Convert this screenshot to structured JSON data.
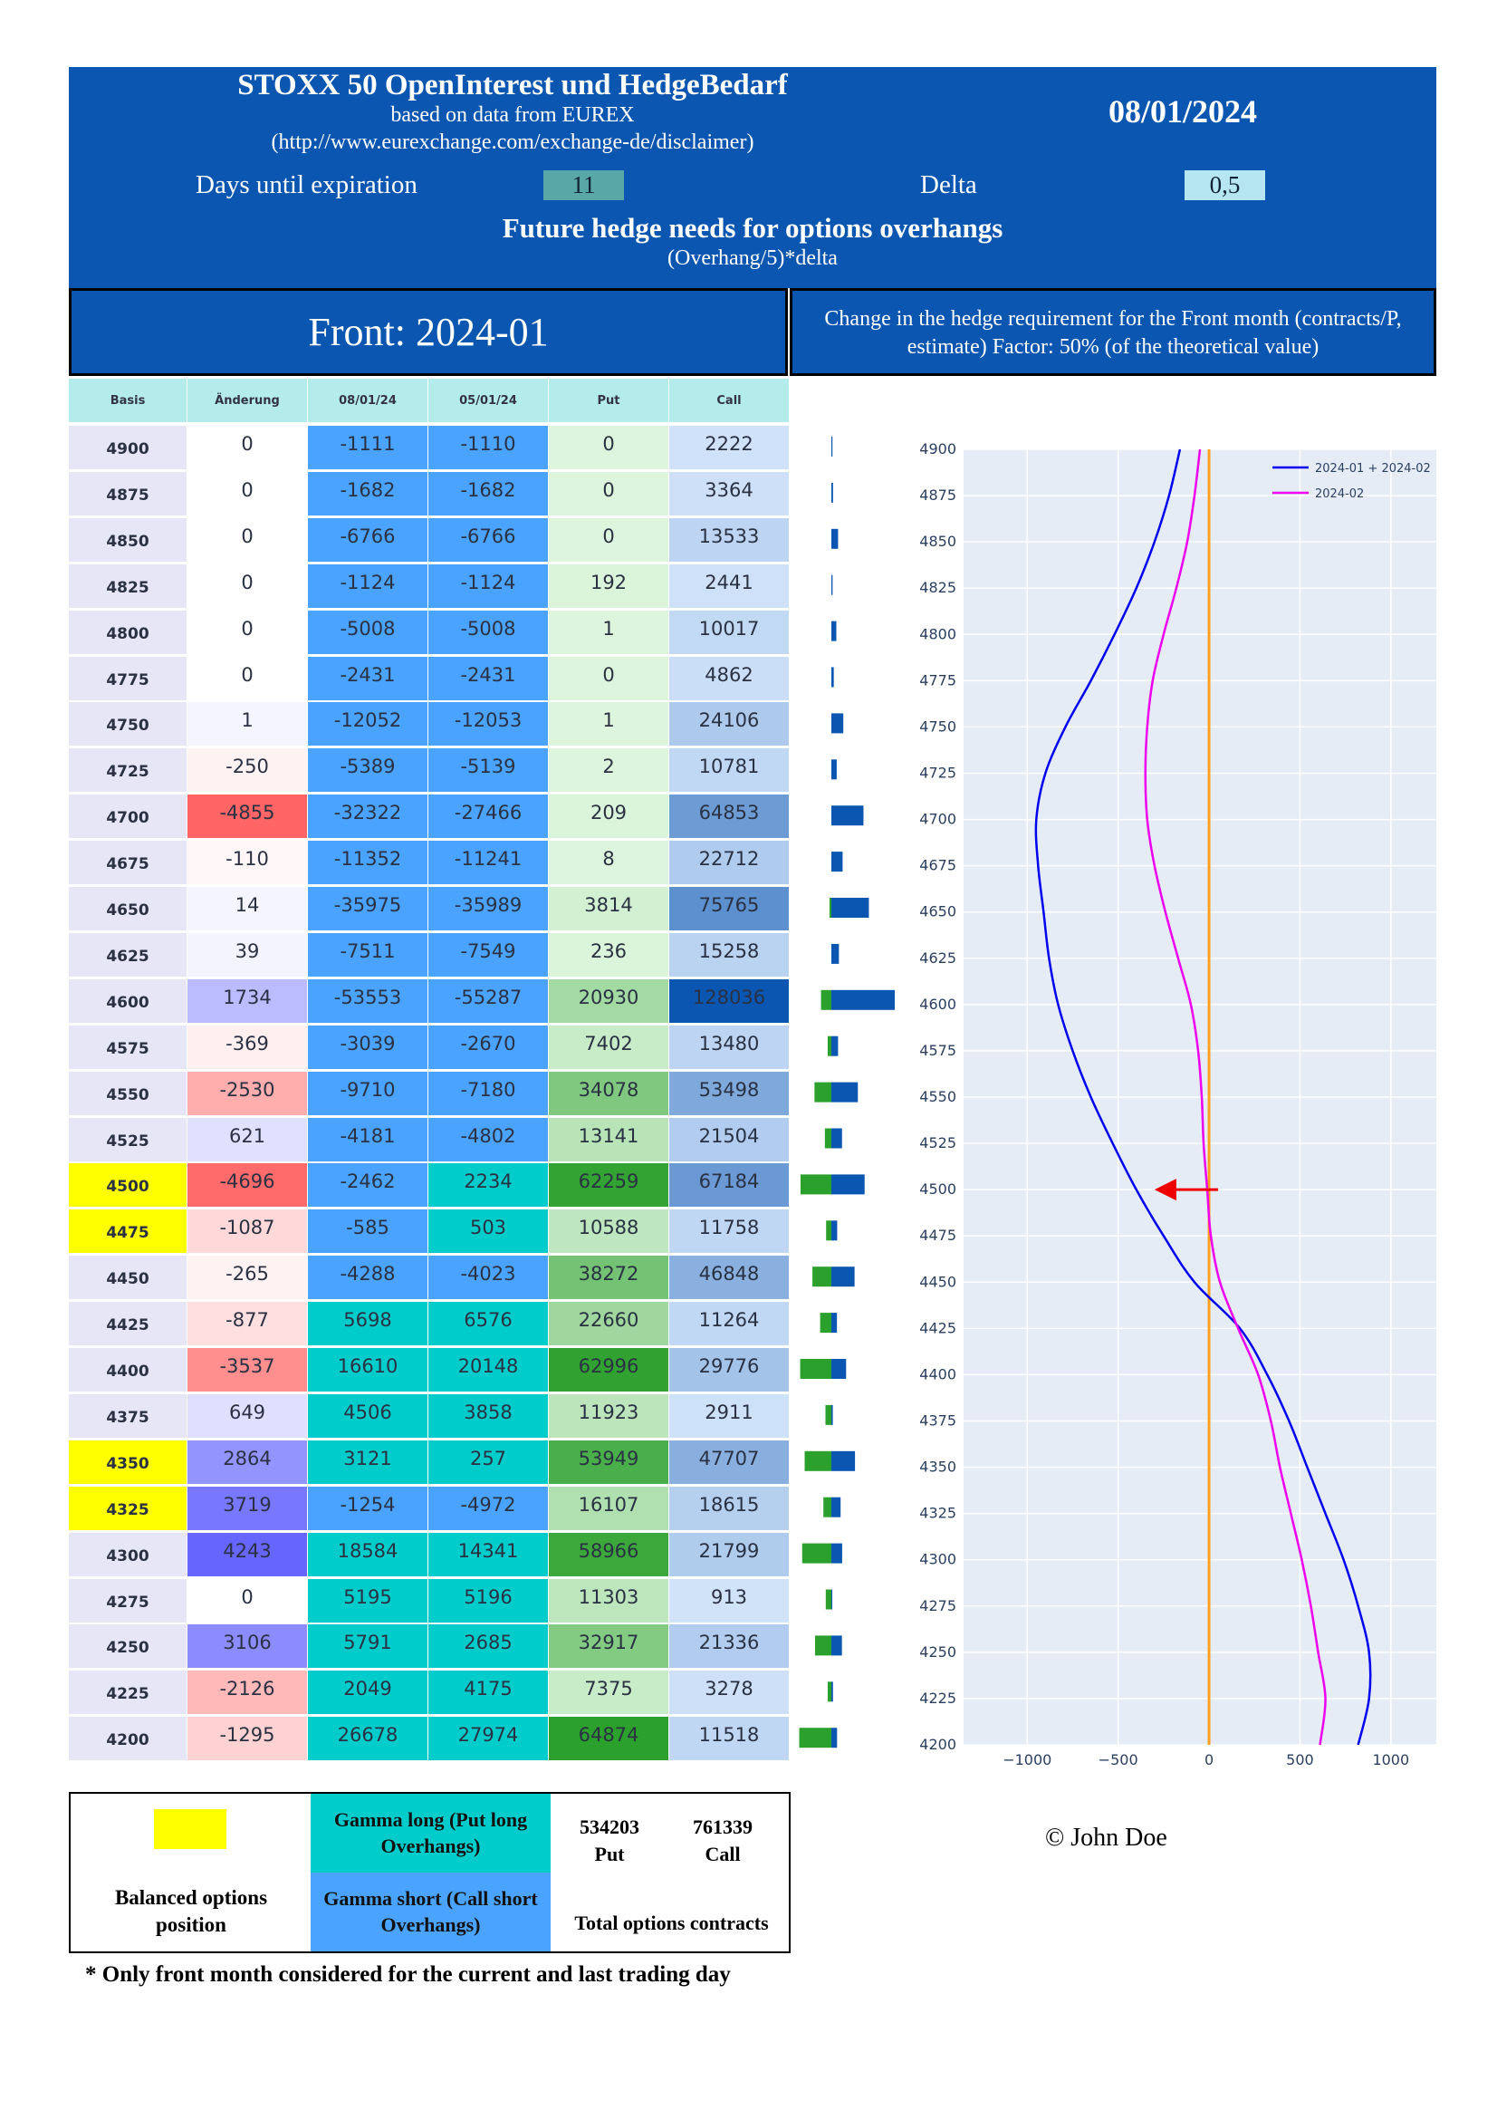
{
  "header": {
    "title": "STOXX 50 OpenInterest und HedgeBedarf",
    "subtitle1": "based on data from EUREX",
    "subtitle2": "(http://www.eurexchange.com/exchange-de/disclaimer)",
    "date": "08/01/2024",
    "days_label": "Days until expiration",
    "days_value": "11",
    "delta_label": "Delta",
    "delta_value": "0,5",
    "future_title": "Future hedge needs for options overhangs",
    "formula": "(Overhang/5)*delta"
  },
  "front_label": "Front: 2024-01",
  "change_label": "Change in the hedge requirement for the Front month (contracts/P, estimate) Factor: 50% (of the theoretical value)",
  "table": {
    "columns": [
      "Basis",
      "Änderung",
      "08/01/24",
      "05/01/24",
      "Put",
      "Call"
    ],
    "rows": [
      {
        "basis": 4900,
        "change": 0,
        "cur": -1111,
        "prev": -1110,
        "put": 0,
        "call": 2222
      },
      {
        "basis": 4875,
        "change": 0,
        "cur": -1682,
        "prev": -1682,
        "put": 0,
        "call": 3364
      },
      {
        "basis": 4850,
        "change": 0,
        "cur": -6766,
        "prev": -6766,
        "put": 0,
        "call": 13533
      },
      {
        "basis": 4825,
        "change": 0,
        "cur": -1124,
        "prev": -1124,
        "put": 192,
        "call": 2441
      },
      {
        "basis": 4800,
        "change": 0,
        "cur": -5008,
        "prev": -5008,
        "put": 1,
        "call": 10017
      },
      {
        "basis": 4775,
        "change": 0,
        "cur": -2431,
        "prev": -2431,
        "put": 0,
        "call": 4862
      },
      {
        "basis": 4750,
        "change": 1,
        "cur": -12052,
        "prev": -12053,
        "put": 1,
        "call": 24106
      },
      {
        "basis": 4725,
        "change": -250,
        "cur": -5389,
        "prev": -5139,
        "put": 2,
        "call": 10781
      },
      {
        "basis": 4700,
        "change": -4855,
        "cur": -32322,
        "prev": -27466,
        "put": 209,
        "call": 64853
      },
      {
        "basis": 4675,
        "change": -110,
        "cur": -11352,
        "prev": -11241,
        "put": 8,
        "call": 22712
      },
      {
        "basis": 4650,
        "change": 14,
        "cur": -35975,
        "prev": -35989,
        "put": 3814,
        "call": 75765
      },
      {
        "basis": 4625,
        "change": 39,
        "cur": -7511,
        "prev": -7549,
        "put": 236,
        "call": 15258
      },
      {
        "basis": 4600,
        "change": 1734,
        "cur": -53553,
        "prev": -55287,
        "put": 20930,
        "call": 128036
      },
      {
        "basis": 4575,
        "change": -369,
        "cur": -3039,
        "prev": -2670,
        "put": 7402,
        "call": 13480
      },
      {
        "basis": 4550,
        "change": -2530,
        "cur": -9710,
        "prev": -7180,
        "put": 34078,
        "call": 53498
      },
      {
        "basis": 4525,
        "change": 621,
        "cur": -4181,
        "prev": -4802,
        "put": 13141,
        "call": 21504
      },
      {
        "basis": 4500,
        "change": -4696,
        "cur": -2462,
        "prev": 2234,
        "put": 62259,
        "call": 67184,
        "highlight": true
      },
      {
        "basis": 4475,
        "change": -1087,
        "cur": -585,
        "prev": 503,
        "put": 10588,
        "call": 11758,
        "highlight": true
      },
      {
        "basis": 4450,
        "change": -265,
        "cur": -4288,
        "prev": -4023,
        "put": 38272,
        "call": 46848
      },
      {
        "basis": 4425,
        "change": -877,
        "cur": 5698,
        "prev": 6576,
        "put": 22660,
        "call": 11264
      },
      {
        "basis": 4400,
        "change": -3537,
        "cur": 16610,
        "prev": 20148,
        "put": 62996,
        "call": 29776
      },
      {
        "basis": 4375,
        "change": 649,
        "cur": 4506,
        "prev": 3858,
        "put": 11923,
        "call": 2911
      },
      {
        "basis": 4350,
        "change": 2864,
        "cur": 3121,
        "prev": 257,
        "put": 53949,
        "call": 47707,
        "highlight": true
      },
      {
        "basis": 4325,
        "change": 3719,
        "cur": -1254,
        "prev": -4972,
        "put": 16107,
        "call": 18615,
        "highlight": true
      },
      {
        "basis": 4300,
        "change": 4243,
        "cur": 18584,
        "prev": 14341,
        "put": 58966,
        "call": 21799
      },
      {
        "basis": 4275,
        "change": 0,
        "cur": 5195,
        "prev": 5196,
        "put": 11303,
        "call": 913
      },
      {
        "basis": 4250,
        "change": 3106,
        "cur": 5791,
        "prev": 2685,
        "put": 32917,
        "call": 21336
      },
      {
        "basis": 4225,
        "change": -2126,
        "cur": 2049,
        "prev": 4175,
        "put": 7375,
        "call": 3278
      },
      {
        "basis": 4200,
        "change": -1295,
        "cur": 26678,
        "prev": 27974,
        "put": 64874,
        "call": 11518
      }
    ]
  },
  "chart_data": {
    "type": "line",
    "ylim": [
      4200,
      4900
    ],
    "xlim": [
      -1350,
      1250
    ],
    "yticks": [
      4900,
      4875,
      4850,
      4825,
      4800,
      4775,
      4750,
      4725,
      4700,
      4675,
      4650,
      4625,
      4600,
      4575,
      4550,
      4525,
      4500,
      4475,
      4450,
      4425,
      4400,
      4375,
      4350,
      4325,
      4300,
      4275,
      4250,
      4225,
      4200
    ],
    "xticks": [
      -1000,
      -500,
      0,
      500,
      1000
    ],
    "xtick_labels": [
      "−1000",
      "−500",
      "0",
      "500",
      "1000"
    ],
    "vline_x": 0,
    "arrow_at": 4500,
    "series": [
      {
        "name": "2024-01 + 2024-02",
        "color": "#0000ee",
        "y": [
          4900,
          4875,
          4850,
          4825,
          4800,
          4775,
          4750,
          4725,
          4700,
          4675,
          4650,
          4625,
          4600,
          4575,
          4550,
          4525,
          4500,
          4475,
          4450,
          4425,
          4400,
          4375,
          4350,
          4325,
          4300,
          4275,
          4250,
          4225,
          4200
        ],
        "x": [
          -160,
          -220,
          -300,
          -400,
          -520,
          -650,
          -790,
          -900,
          -950,
          -940,
          -910,
          -880,
          -830,
          -750,
          -650,
          -530,
          -400,
          -250,
          -80,
          170,
          320,
          440,
          540,
          640,
          740,
          820,
          880,
          880,
          820
        ]
      },
      {
        "name": "2024-02",
        "color": "#ee00ee",
        "y": [
          4900,
          4875,
          4850,
          4825,
          4800,
          4775,
          4750,
          4725,
          4700,
          4675,
          4650,
          4625,
          4600,
          4575,
          4550,
          4525,
          4500,
          4475,
          4450,
          4425,
          4400,
          4375,
          4350,
          4325,
          4300,
          4275,
          4250,
          4225,
          4200
        ],
        "x": [
          -50,
          -80,
          -120,
          -180,
          -250,
          -310,
          -340,
          -350,
          -340,
          -300,
          -240,
          -170,
          -100,
          -60,
          -40,
          -30,
          -10,
          10,
          60,
          160,
          270,
          340,
          390,
          450,
          510,
          560,
          600,
          640,
          610
        ]
      }
    ]
  },
  "legend": {
    "balanced": "Balanced options position",
    "gamma_long": "Gamma long (Put long Overhangs)",
    "gamma_short": "Gamma short (Call short Overhangs)",
    "put_total": "534203",
    "put_label": "Put",
    "call_total": "761339",
    "call_label": "Call",
    "total_label": "Total options contracts"
  },
  "footnote": "* Only front month considered for the current and last trading day",
  "copyright": "© John Doe",
  "colors": {
    "header_bg": "#0b56b0",
    "gamma_long": "#00cccc",
    "gamma_short": "#4aa4ff",
    "highlight": "#ffff00",
    "put_bar": "#2ca02c",
    "call_bar": "#0b56b0",
    "hedge_line": "#ffa020"
  }
}
